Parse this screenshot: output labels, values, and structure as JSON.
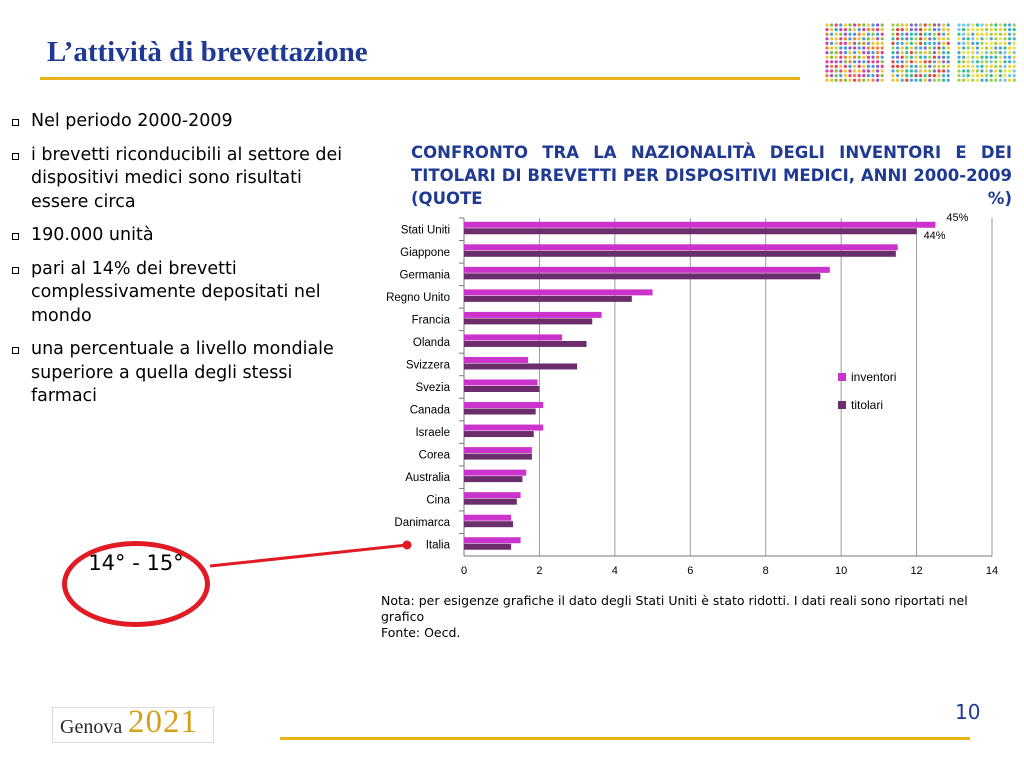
{
  "slide": {
    "title": "L’attività di brevettazione",
    "page_number": "10"
  },
  "bullets": [
    "Nel periodo 2000-2009",
    "i brevetti riconducibili al settore dei dispositivi medici sono risultati essere circa",
    "190.000 unità",
    "pari al 14% dei brevetti complessivamente depositati nel mondo",
    "una percentuale a livello mondiale superiore a quella degli stessi farmaci"
  ],
  "highlight": {
    "rank_text": "14° - 15°",
    "ellipse_color": "#e01b24"
  },
  "chart_data": {
    "type": "bar",
    "orientation": "horizontal",
    "title": "CONFRONTO TRA LA NAZIONALITÀ DEGLI INVENTORI E DEI TITOLARI DI BREVETTI PER DISPOSITIVI MEDICI, ANNI 2000-2009 (quote %)",
    "categories": [
      "Stati Uniti",
      "Giappone",
      "Germania",
      "Regno Unito",
      "Francia",
      "Olanda",
      "Svizzera",
      "Svezia",
      "Canada",
      "Israele",
      "Corea",
      "Australia",
      "Cina",
      "Danimarca",
      "Italia"
    ],
    "series": [
      {
        "name": "inventori",
        "color": "#cc33cc",
        "values": [
          12.5,
          11.5,
          9.7,
          5.0,
          3.65,
          2.6,
          1.7,
          1.95,
          2.1,
          2.1,
          1.8,
          1.65,
          1.5,
          1.25,
          1.5
        ]
      },
      {
        "name": "titolari",
        "color": "#6b2d6b",
        "values": [
          12.0,
          11.45,
          9.45,
          4.45,
          3.4,
          3.25,
          3.0,
          2.0,
          1.9,
          1.85,
          1.8,
          1.55,
          1.4,
          1.3,
          1.25
        ]
      }
    ],
    "data_labels": {
      "inventori_Stati Uniti": "45%",
      "titolari_Stati Uniti": "44%"
    },
    "xlim": [
      0,
      14
    ],
    "xticks": [
      "0",
      "2",
      "4",
      "6",
      "8",
      "10",
      "12",
      "14"
    ],
    "grid": true,
    "legend": "right",
    "note": "Nota: per esigenze grafiche il dato degli Stati Uniti è stato ridotti. I dati reali sono riportati nel grafico",
    "source": "Fonte: Oecd."
  },
  "footer": {
    "logo_word": "Genova",
    "logo_year": "2021"
  },
  "colors": {
    "title_blue": "#1f3a93",
    "gold_rule": "#e8b418"
  }
}
